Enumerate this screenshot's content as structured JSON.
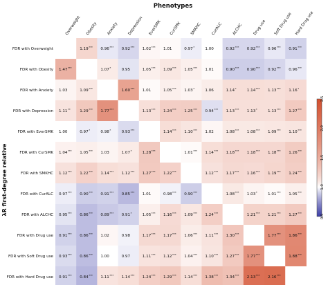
{
  "chart_data": {
    "type": "heatmap",
    "title": "",
    "xlabel": "Phenotypes",
    "ylabel": "λR first-degree relative",
    "columns": [
      "Overweight",
      "Obesity",
      "Anxiety",
      "Depression",
      "EverSMK",
      "CurSMK",
      "SMKHC",
      "CurALC",
      "ALCHC",
      "Drug use",
      "Soft Drug use",
      "Hard Drug use"
    ],
    "rows": [
      "FDR with Overweight",
      "FDR with Obesity",
      "FDR with Anxiety",
      "FDR with Depression",
      "FDR with EverSMK",
      "FDR with CurSMK",
      "FDR with SMKHC",
      "FDR with CurALC",
      "FDR with ALCHC",
      "FDR with Drug use",
      "FDR with Soft Drug use",
      "FDR with Hard Drug use"
    ],
    "values": [
      [
        null,
        1.19,
        0.96,
        0.92,
        1.02,
        1.01,
        0.97,
        1.0,
        0.92,
        0.92,
        0.96,
        0.91
      ],
      [
        1.47,
        null,
        1.07,
        0.95,
        1.05,
        1.09,
        1.05,
        1.01,
        0.9,
        0.9,
        0.92,
        0.96
      ],
      [
        1.03,
        1.09,
        null,
        1.6,
        1.01,
        1.05,
        1.03,
        1.06,
        1.14,
        1.14,
        1.13,
        1.16
      ],
      [
        1.11,
        1.29,
        1.77,
        null,
        1.13,
        1.24,
        1.25,
        0.94,
        1.13,
        1.13,
        1.13,
        1.27
      ],
      [
        1.0,
        0.97,
        0.98,
        0.93,
        null,
        1.14,
        1.1,
        1.02,
        1.08,
        1.08,
        1.09,
        1.1
      ],
      [
        1.04,
        1.05,
        1.03,
        1.07,
        1.28,
        null,
        1.01,
        1.14,
        1.18,
        1.18,
        1.18,
        1.26
      ],
      [
        1.12,
        1.22,
        1.14,
        1.12,
        1.27,
        1.22,
        null,
        1.12,
        1.17,
        1.16,
        1.19,
        1.24
      ],
      [
        0.97,
        0.9,
        0.91,
        0.85,
        1.01,
        0.98,
        0.9,
        null,
        1.08,
        1.03,
        1.01,
        1.05
      ],
      [
        0.95,
        0.86,
        0.89,
        0.91,
        1.05,
        1.16,
        1.09,
        1.24,
        null,
        1.21,
        1.21,
        1.27
      ],
      [
        0.91,
        0.86,
        1.02,
        0.98,
        1.17,
        1.17,
        1.06,
        1.11,
        1.3,
        null,
        1.77,
        1.86
      ],
      [
        0.93,
        0.86,
        1.0,
        0.97,
        1.11,
        1.12,
        1.04,
        1.1,
        1.27,
        1.77,
        null,
        1.88
      ],
      [
        0.91,
        0.84,
        1.11,
        1.14,
        1.24,
        1.29,
        1.14,
        1.38,
        1.34,
        2.13,
        2.16,
        null
      ]
    ],
    "stars": [
      [
        "",
        "***",
        "***",
        "***",
        "***",
        "",
        "*",
        "",
        "***",
        "***",
        "***",
        "***"
      ],
      [
        "***",
        "",
        "*",
        "",
        "***",
        "***",
        "***",
        "",
        "***",
        "***",
        "***",
        "***"
      ],
      [
        "",
        "***",
        "",
        "***",
        "",
        "***",
        "*",
        "",
        "*",
        "***",
        "***",
        "*"
      ],
      [
        "**",
        "***",
        "***",
        "",
        "***",
        "***",
        "***",
        "***",
        "***",
        "*",
        "***",
        "***"
      ],
      [
        "",
        "*",
        "*",
        "***",
        "",
        "***",
        "***",
        "",
        "***",
        "***",
        "***",
        "***"
      ],
      [
        "***",
        "***",
        "",
        "*",
        "***",
        "",
        "***",
        "***",
        "***",
        "***",
        "***",
        "***"
      ],
      [
        "***",
        "***",
        "***",
        "***",
        "***",
        "***",
        "",
        "***",
        "***",
        "***",
        "***",
        "***"
      ],
      [
        "***",
        "***",
        "***",
        "***",
        "",
        "***",
        "***",
        "",
        "***",
        "*",
        "***",
        "***"
      ],
      [
        "***",
        "***",
        "***",
        "*",
        "***",
        "***",
        "***",
        "***",
        "",
        "***",
        "***",
        "***"
      ],
      [
        "***",
        "***",
        "",
        "",
        "***",
        "***",
        "***",
        "***",
        "***",
        "",
        "***",
        "***"
      ],
      [
        "***",
        "***",
        "",
        "",
        "***",
        "***",
        "***",
        "***",
        "***",
        "***",
        "",
        "***"
      ],
      [
        "***",
        "***",
        "***",
        "***",
        "***",
        "***",
        "***",
        "***",
        "***",
        "***",
        "***",
        ""
      ]
    ],
    "colorscale": {
      "low": "#3b3da6",
      "mid": "#ffffff",
      "high": "#d3502f",
      "min": 0.5,
      "center": 1.0,
      "max": 2.5
    },
    "colorbar_ticks": [
      "0.5",
      "1.0",
      "1.5",
      "2.0",
      "2.5"
    ],
    "grid": false,
    "legend": "right colorbar"
  }
}
